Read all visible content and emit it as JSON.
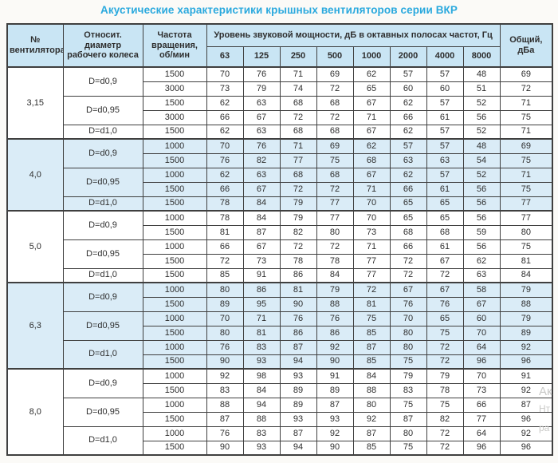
{
  "title": "Акустические характеристики крышных вентиляторов серии ВКР",
  "colors": {
    "title_accent": "#2aa9de",
    "header_bg": "#c9e5f4",
    "tinted_section_bg": "#daecf7",
    "border": "#3f3f3f",
    "page_bg": "#fbfaf7"
  },
  "watermark": {
    "line1": "Ак",
    "line2": "Нт",
    "line3": "ра"
  },
  "table": {
    "headers": {
      "fan": "№ вентилятора",
      "diameter": "Относит. диаметр рабочего колеса",
      "rpm": "Частота вращения, об/мин",
      "spl_group": "Уровень звуковой мощности, дБ в октавных полосах частот, Гц",
      "freqs": [
        "63",
        "125",
        "250",
        "500",
        "1000",
        "2000",
        "4000",
        "8000"
      ],
      "total": "Общий, дБа"
    },
    "sections": [
      {
        "fan": "3,15",
        "tinted": false,
        "groups": [
          {
            "d": "D=d0,9",
            "rows": [
              {
                "rpm": "1500",
                "levels": [
                  70,
                  76,
                  71,
                  69,
                  62,
                  57,
                  57,
                  48
                ],
                "total": 69
              },
              {
                "rpm": "3000",
                "levels": [
                  73,
                  79,
                  74,
                  72,
                  65,
                  60,
                  60,
                  51
                ],
                "total": 72
              }
            ]
          },
          {
            "d": "D=d0,95",
            "rows": [
              {
                "rpm": "1500",
                "levels": [
                  62,
                  63,
                  68,
                  68,
                  67,
                  62,
                  57,
                  52
                ],
                "total": 71
              },
              {
                "rpm": "3000",
                "levels": [
                  66,
                  67,
                  72,
                  72,
                  71,
                  66,
                  61,
                  56
                ],
                "total": 75
              }
            ]
          },
          {
            "d": "D=d1,0",
            "rows": [
              {
                "rpm": "1500",
                "levels": [
                  62,
                  63,
                  68,
                  68,
                  67,
                  62,
                  57,
                  52
                ],
                "total": 71
              }
            ]
          }
        ]
      },
      {
        "fan": "4,0",
        "tinted": true,
        "groups": [
          {
            "d": "D=d0,9",
            "rows": [
              {
                "rpm": "1000",
                "levels": [
                  70,
                  76,
                  71,
                  69,
                  62,
                  57,
                  57,
                  48
                ],
                "total": 69
              },
              {
                "rpm": "1500",
                "levels": [
                  76,
                  82,
                  77,
                  75,
                  68,
                  63,
                  63,
                  54
                ],
                "total": 75
              }
            ]
          },
          {
            "d": "D=d0,95",
            "rows": [
              {
                "rpm": "1000",
                "levels": [
                  62,
                  63,
                  68,
                  68,
                  67,
                  62,
                  57,
                  52
                ],
                "total": 71
              },
              {
                "rpm": "1500",
                "levels": [
                  66,
                  67,
                  72,
                  72,
                  71,
                  66,
                  61,
                  56
                ],
                "total": 75
              }
            ]
          },
          {
            "d": "D=d1,0",
            "rows": [
              {
                "rpm": "1500",
                "levels": [
                  78,
                  84,
                  79,
                  77,
                  70,
                  65,
                  65,
                  56
                ],
                "total": 77
              }
            ]
          }
        ]
      },
      {
        "fan": "5,0",
        "tinted": false,
        "groups": [
          {
            "d": "D=d0,9",
            "rows": [
              {
                "rpm": "1000",
                "levels": [
                  78,
                  84,
                  79,
                  77,
                  70,
                  65,
                  65,
                  56
                ],
                "total": 77
              },
              {
                "rpm": "1500",
                "levels": [
                  81,
                  87,
                  82,
                  80,
                  73,
                  68,
                  68,
                  59
                ],
                "total": 80
              }
            ]
          },
          {
            "d": "D=d0,95",
            "rows": [
              {
                "rpm": "1000",
                "levels": [
                  66,
                  67,
                  72,
                  72,
                  71,
                  66,
                  61,
                  56
                ],
                "total": 75
              },
              {
                "rpm": "1500",
                "levels": [
                  72,
                  73,
                  78,
                  78,
                  77,
                  72,
                  67,
                  62
                ],
                "total": 81
              }
            ]
          },
          {
            "d": "D=d1,0",
            "rows": [
              {
                "rpm": "1500",
                "levels": [
                  85,
                  91,
                  86,
                  84,
                  77,
                  72,
                  72,
                  63
                ],
                "total": 84
              }
            ]
          }
        ]
      },
      {
        "fan": "6,3",
        "tinted": true,
        "groups": [
          {
            "d": "D=d0,9",
            "rows": [
              {
                "rpm": "1000",
                "levels": [
                  80,
                  86,
                  81,
                  79,
                  72,
                  67,
                  67,
                  58
                ],
                "total": 79
              },
              {
                "rpm": "1500",
                "levels": [
                  89,
                  95,
                  90,
                  88,
                  81,
                  76,
                  76,
                  67
                ],
                "total": 88
              }
            ]
          },
          {
            "d": "D=d0,95",
            "rows": [
              {
                "rpm": "1000",
                "levels": [
                  70,
                  71,
                  76,
                  76,
                  75,
                  70,
                  65,
                  60
                ],
                "total": 79
              },
              {
                "rpm": "1500",
                "levels": [
                  80,
                  81,
                  86,
                  86,
                  85,
                  80,
                  75,
                  70
                ],
                "total": 89
              }
            ]
          },
          {
            "d": "D=d1,0",
            "rows": [
              {
                "rpm": "1000",
                "levels": [
                  76,
                  83,
                  87,
                  92,
                  87,
                  80,
                  72,
                  64
                ],
                "total": 92
              },
              {
                "rpm": "1500",
                "levels": [
                  90,
                  93,
                  94,
                  90,
                  85,
                  75,
                  72,
                  96
                ],
                "total": 96
              }
            ]
          }
        ]
      },
      {
        "fan": "8,0",
        "tinted": false,
        "groups": [
          {
            "d": "D=d0,9",
            "rows": [
              {
                "rpm": "1000",
                "levels": [
                  92,
                  98,
                  93,
                  91,
                  84,
                  79,
                  79,
                  70
                ],
                "total": 91
              },
              {
                "rpm": "1500",
                "levels": [
                  83,
                  84,
                  89,
                  89,
                  88,
                  83,
                  78,
                  73
                ],
                "total": 92
              }
            ]
          },
          {
            "d": "D=d0,95",
            "rows": [
              {
                "rpm": "1000",
                "levels": [
                  88,
                  94,
                  89,
                  87,
                  80,
                  75,
                  75,
                  66
                ],
                "total": 87
              },
              {
                "rpm": "1500",
                "levels": [
                  87,
                  88,
                  93,
                  93,
                  92,
                  87,
                  82,
                  77
                ],
                "total": 96
              }
            ]
          },
          {
            "d": "D=d1,0",
            "rows": [
              {
                "rpm": "1000",
                "levels": [
                  76,
                  83,
                  87,
                  92,
                  87,
                  80,
                  72,
                  64
                ],
                "total": 92
              },
              {
                "rpm": "1500",
                "levels": [
                  90,
                  93,
                  94,
                  90,
                  85,
                  75,
                  72,
                  96
                ],
                "total": 96
              }
            ]
          }
        ]
      }
    ]
  }
}
